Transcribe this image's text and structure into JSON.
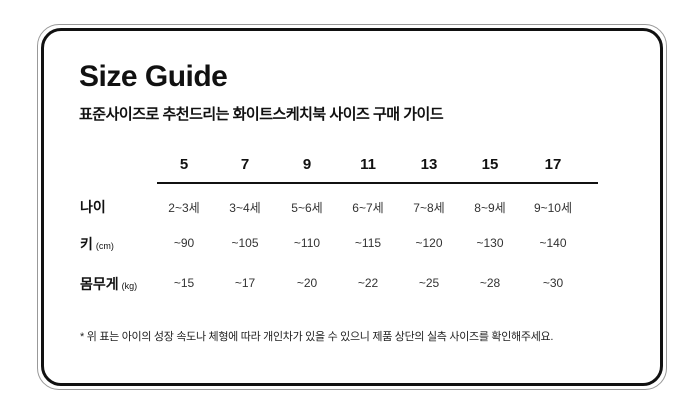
{
  "title": "Size Guide",
  "subtitle": "표준사이즈로 추천드리는 화이트스케치북 사이즈 구매 가이드",
  "table": {
    "sizes": [
      "5",
      "7",
      "9",
      "11",
      "13",
      "15",
      "17"
    ],
    "rows": [
      {
        "label": "나이",
        "unit": "",
        "values": [
          "2~3세",
          "3~4세",
          "5~6세",
          "6~7세",
          "7~8세",
          "8~9세",
          "9~10세"
        ]
      },
      {
        "label": "키",
        "unit": "(cm)",
        "values": [
          "~90",
          "~105",
          "~110",
          "~115",
          "~120",
          "~130",
          "~140"
        ]
      },
      {
        "label": "몸무게",
        "unit": "(kg)",
        "values": [
          "~15",
          "~17",
          "~20",
          "~22",
          "~25",
          "~28",
          "~30"
        ]
      }
    ]
  },
  "note": "* 위 표는 아이의 성장 속도나 체형에 따라 개인차가 있을 수 있으니 제품 상단의 실측 사이즈를 확인해주세요."
}
